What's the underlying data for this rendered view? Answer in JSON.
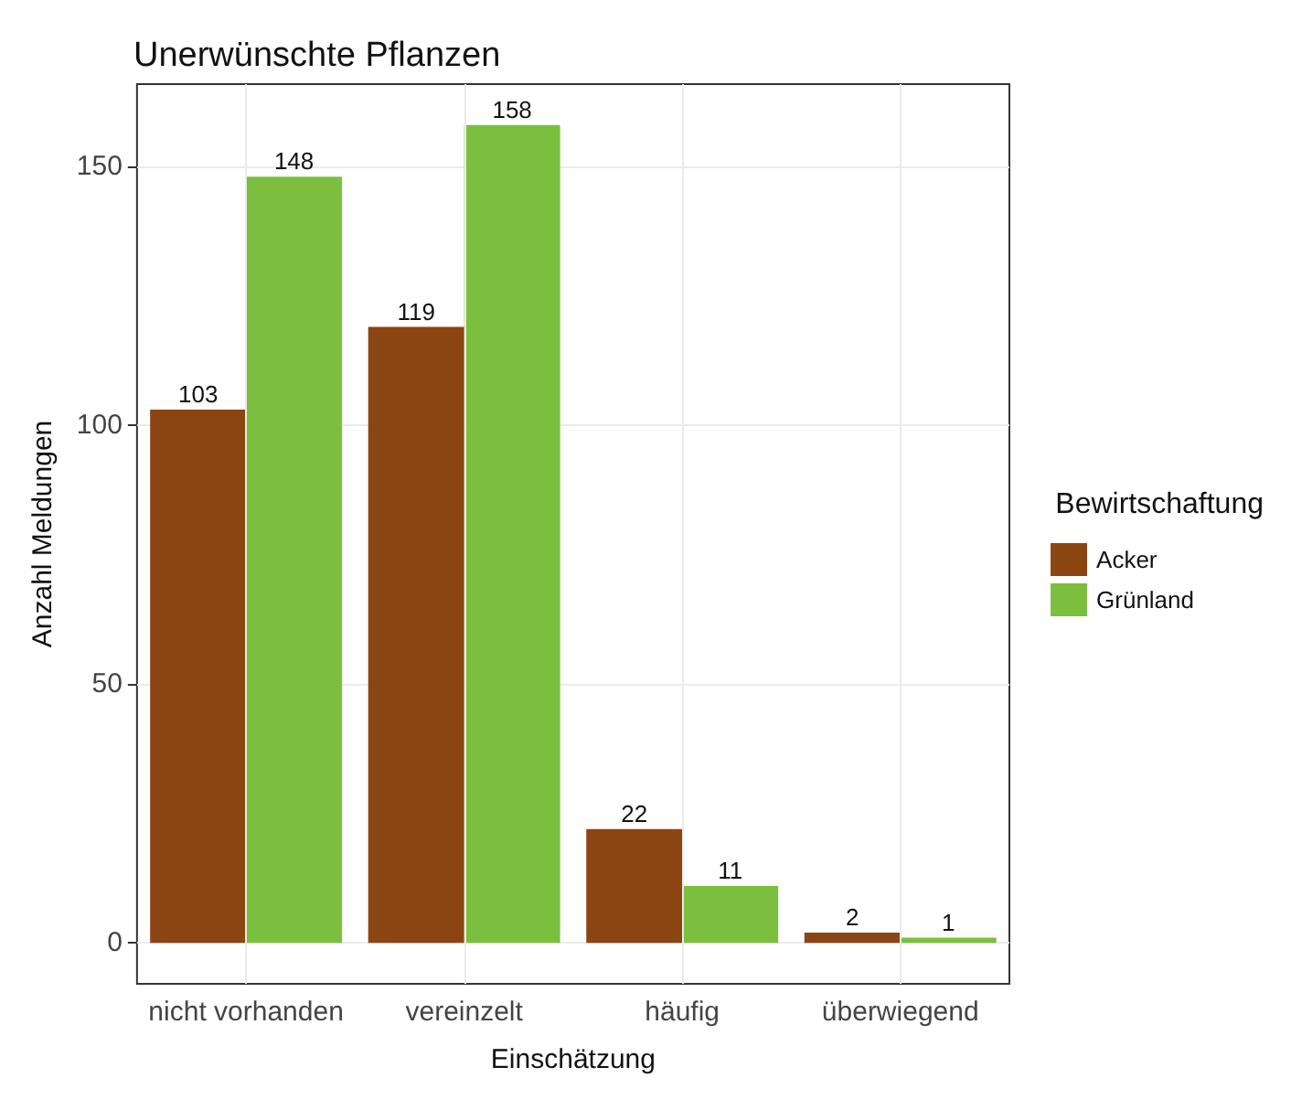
{
  "chart_data": {
    "type": "bar",
    "title": "Unerwünschte Pflanzen",
    "xlabel": "Einschätzung",
    "ylabel": "Anzahl Meldungen",
    "legend_title": "Bewirtschaftung",
    "categories": [
      "nicht vorhanden",
      "vereinzelt",
      "häufig",
      "überwiegend"
    ],
    "series": [
      {
        "name": "Acker",
        "color": "#8b4513",
        "values": [
          103,
          119,
          22,
          2
        ]
      },
      {
        "name": "Grünland",
        "color": "#7cbf3f",
        "values": [
          148,
          158,
          11,
          1
        ]
      }
    ],
    "ylim": [
      -7.9,
      165.9
    ],
    "yticks": [
      0,
      50,
      100,
      150
    ],
    "grid": true,
    "legend": "right",
    "data_labels": true
  }
}
